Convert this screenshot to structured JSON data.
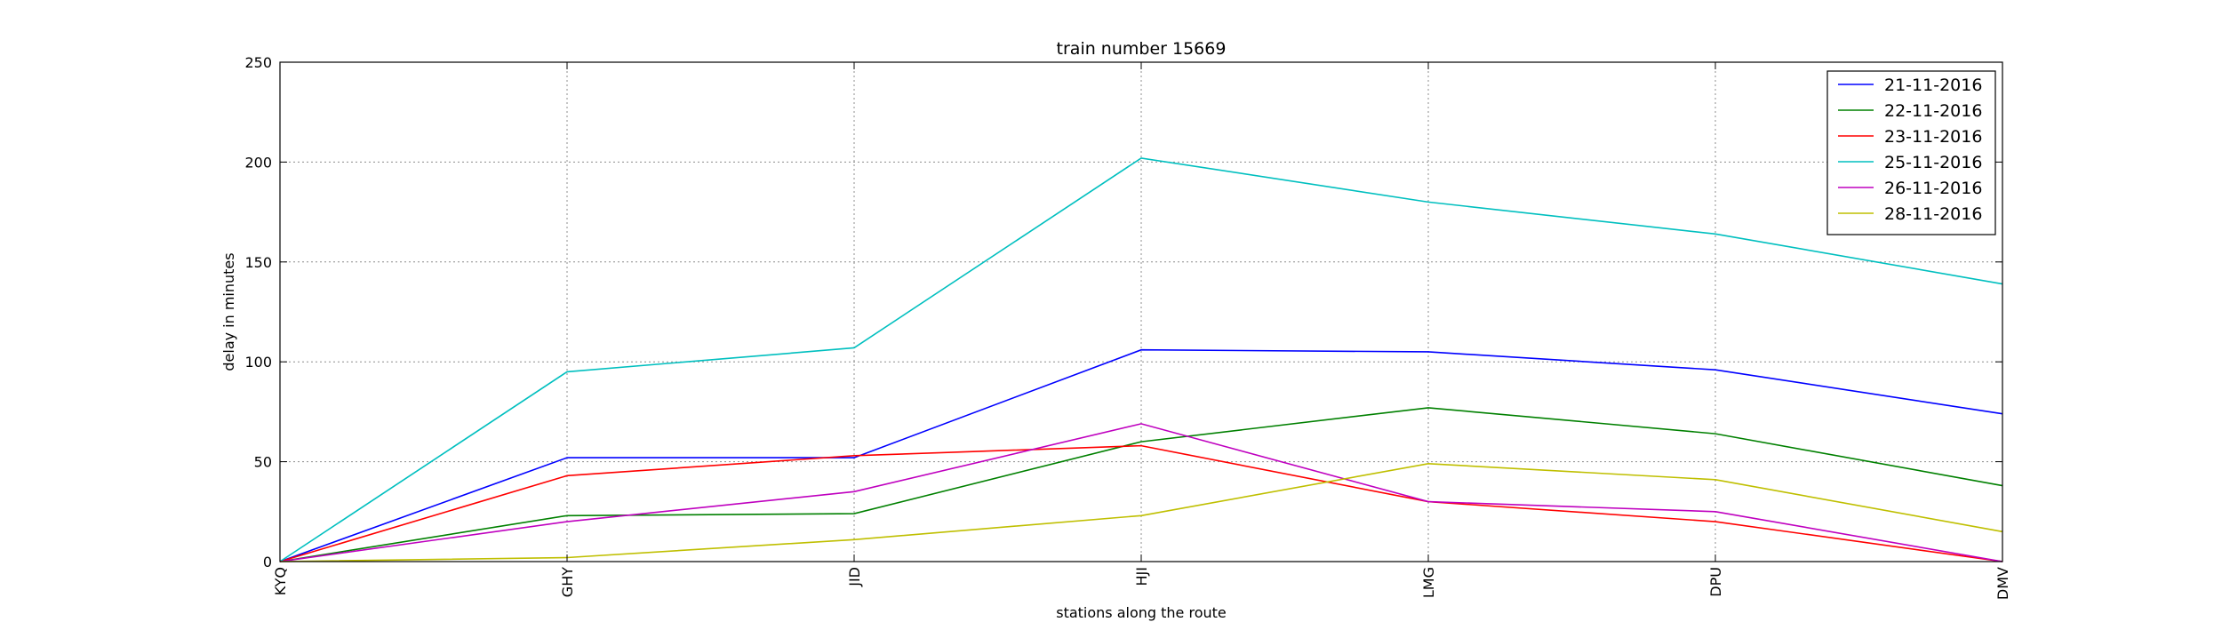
{
  "chart_data": {
    "type": "line",
    "title": "train number 15669",
    "xlabel": "stations along the route",
    "ylabel": "delay in minutes",
    "categories": [
      "KYQ",
      "GHY",
      "JID",
      "HJI",
      "LMG",
      "DPU",
      "DMV"
    ],
    "ylim": [
      0,
      250
    ],
    "yticks": [
      0,
      50,
      100,
      150,
      200,
      250
    ],
    "grid": true,
    "legend_position": "top-right",
    "series": [
      {
        "name": "21-11-2016",
        "color": "#0000ff",
        "values": [
          0,
          52,
          52,
          106,
          105,
          96,
          74
        ]
      },
      {
        "name": "22-11-2016",
        "color": "#008000",
        "values": [
          0,
          23,
          24,
          60,
          77,
          64,
          38
        ]
      },
      {
        "name": "23-11-2016",
        "color": "#ff0000",
        "values": [
          0,
          43,
          53,
          58,
          30,
          20,
          0
        ]
      },
      {
        "name": "25-11-2016",
        "color": "#00bfbf",
        "values": [
          0,
          95,
          107,
          202,
          180,
          164,
          139
        ]
      },
      {
        "name": "26-11-2016",
        "color": "#bf00bf",
        "values": [
          0,
          20,
          35,
          69,
          30,
          25,
          0
        ]
      },
      {
        "name": "28-11-2016",
        "color": "#bfbf00",
        "values": [
          0,
          2,
          11,
          23,
          49,
          41,
          15
        ]
      }
    ]
  }
}
